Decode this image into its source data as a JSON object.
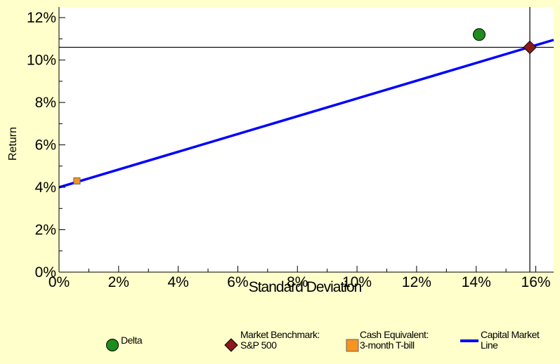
{
  "chart_data": {
    "type": "scatter",
    "xlabel": "Standard Deviation",
    "ylabel": "Return",
    "xlim": [
      0,
      16.6
    ],
    "ylim": [
      0,
      12.5
    ],
    "x_ticks": [
      "0%",
      "2%",
      "4%",
      "6%",
      "8%",
      "10%",
      "12%",
      "14%",
      "16%"
    ],
    "y_ticks": [
      "0%",
      "2%",
      "4%",
      "6%",
      "8%",
      "10%",
      "12%"
    ],
    "x_tick_values": [
      0,
      2,
      4,
      6,
      8,
      10,
      12,
      14,
      16
    ],
    "y_tick_values": [
      0,
      2,
      4,
      6,
      8,
      10,
      12
    ],
    "grid": false,
    "series": [
      {
        "name": "Delta",
        "marker": "circle",
        "color": "#1E8C1E",
        "points": [
          {
            "x": 14.1,
            "y": 11.2
          }
        ]
      },
      {
        "name": "Market Benchmark: S&P 500",
        "marker": "diamond",
        "color": "#8B1A1A",
        "points": [
          {
            "x": 15.8,
            "y": 10.6
          }
        ]
      },
      {
        "name": "Cash Equivalent: 3-month T-bill",
        "marker": "square",
        "color": "#F7931E",
        "points": [
          {
            "x": 0.6,
            "y": 4.3
          }
        ]
      },
      {
        "name": "Capital Market Line",
        "marker": "line",
        "color": "#0000FF",
        "points": [
          {
            "x": 0,
            "y": 4.0
          },
          {
            "x": 16.6,
            "y": 10.95
          }
        ]
      }
    ],
    "reference_lines": {
      "x": 15.8,
      "y": 10.6
    },
    "legend": {
      "placement": "bottom",
      "entries": [
        {
          "lines": [
            "Delta"
          ]
        },
        {
          "lines": [
            "Market Benchmark:",
            "S&P 500"
          ]
        },
        {
          "lines": [
            "Cash Equivalent:",
            "3-month T-bill"
          ]
        },
        {
          "lines": [
            "Capital Market",
            "Line"
          ]
        }
      ]
    }
  }
}
